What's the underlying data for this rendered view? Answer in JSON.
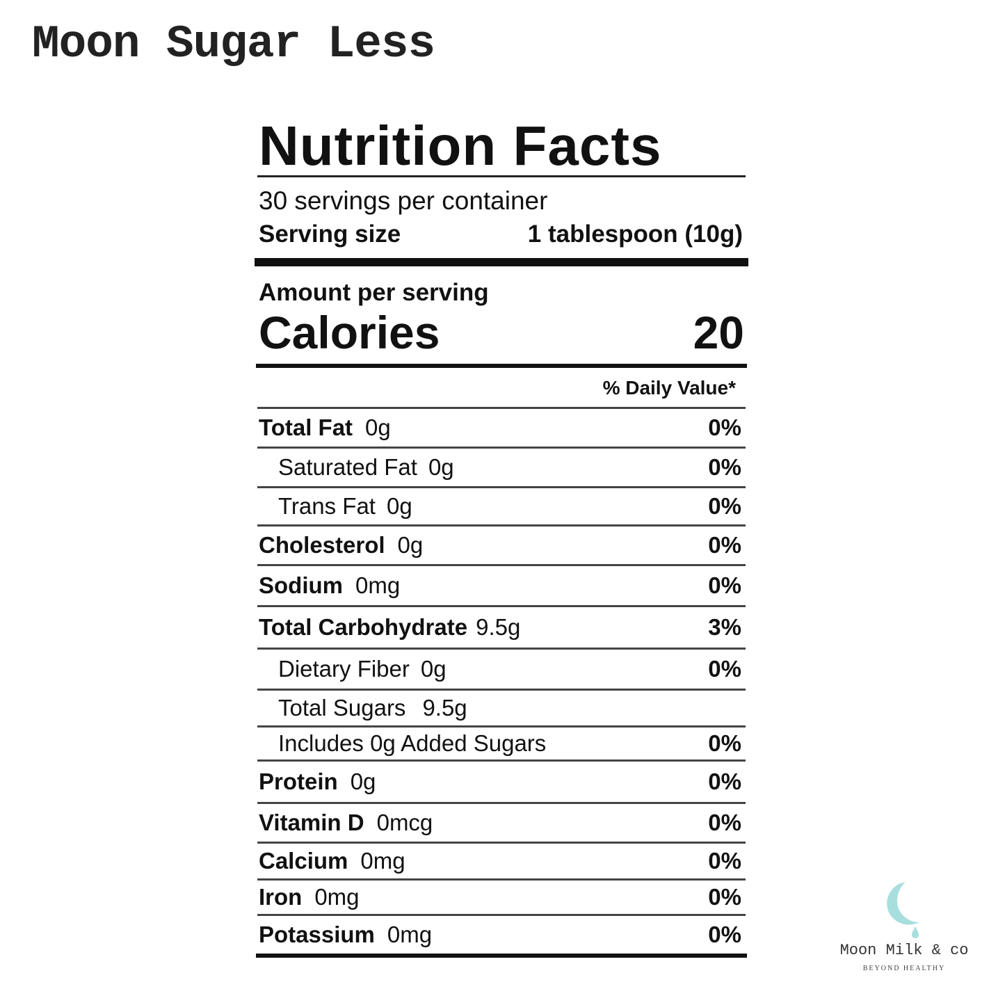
{
  "product_title": "Moon Sugar Less",
  "label": {
    "title": "Nutrition Facts",
    "servings_per_container": "30 servings per container",
    "serving_size_label": "Serving size",
    "serving_size_value": "1 tablespoon (10g)",
    "amount_per_serving": "Amount per serving",
    "calories_label": "Calories",
    "calories_value": "20",
    "daily_value_header": "% Daily Value*",
    "rows": [
      {
        "name": "Total Fat",
        "amount": "0g",
        "dv": "0%"
      },
      {
        "name": "Saturated Fat",
        "amount": "0g",
        "dv": "0%"
      },
      {
        "name": "Trans Fat",
        "amount": "0g",
        "dv": "0%"
      },
      {
        "name": "Cholesterol",
        "amount": "0g",
        "dv": "0%"
      },
      {
        "name": "Sodium",
        "amount": "0mg",
        "dv": "0%"
      },
      {
        "name": "Total Carbohydrate",
        "amount": "9.5g",
        "dv": "3%"
      },
      {
        "name": "Dietary Fiber",
        "amount": "0g",
        "dv": "0%"
      },
      {
        "name": "Total Sugars",
        "amount": "9.5g",
        "dv": ""
      },
      {
        "name": "Includes 0g Added Sugars",
        "amount": "",
        "dv": "0%"
      },
      {
        "name": "Protein",
        "amount": "0g",
        "dv": "0%"
      },
      {
        "name": "Vitamin D",
        "amount": "0mcg",
        "dv": "0%"
      },
      {
        "name": "Calcium",
        "amount": "0mg",
        "dv": "0%"
      },
      {
        "name": "Iron",
        "amount": "0mg",
        "dv": "0%"
      },
      {
        "name": "Potassium",
        "amount": "0mg",
        "dv": "0%"
      }
    ]
  },
  "brand": {
    "logo_icon": "crescent-moon-droplet-icon",
    "logo_color": "#a8dede",
    "name": "Moon Milk & co",
    "tagline": "BEYOND HEALTHY"
  }
}
